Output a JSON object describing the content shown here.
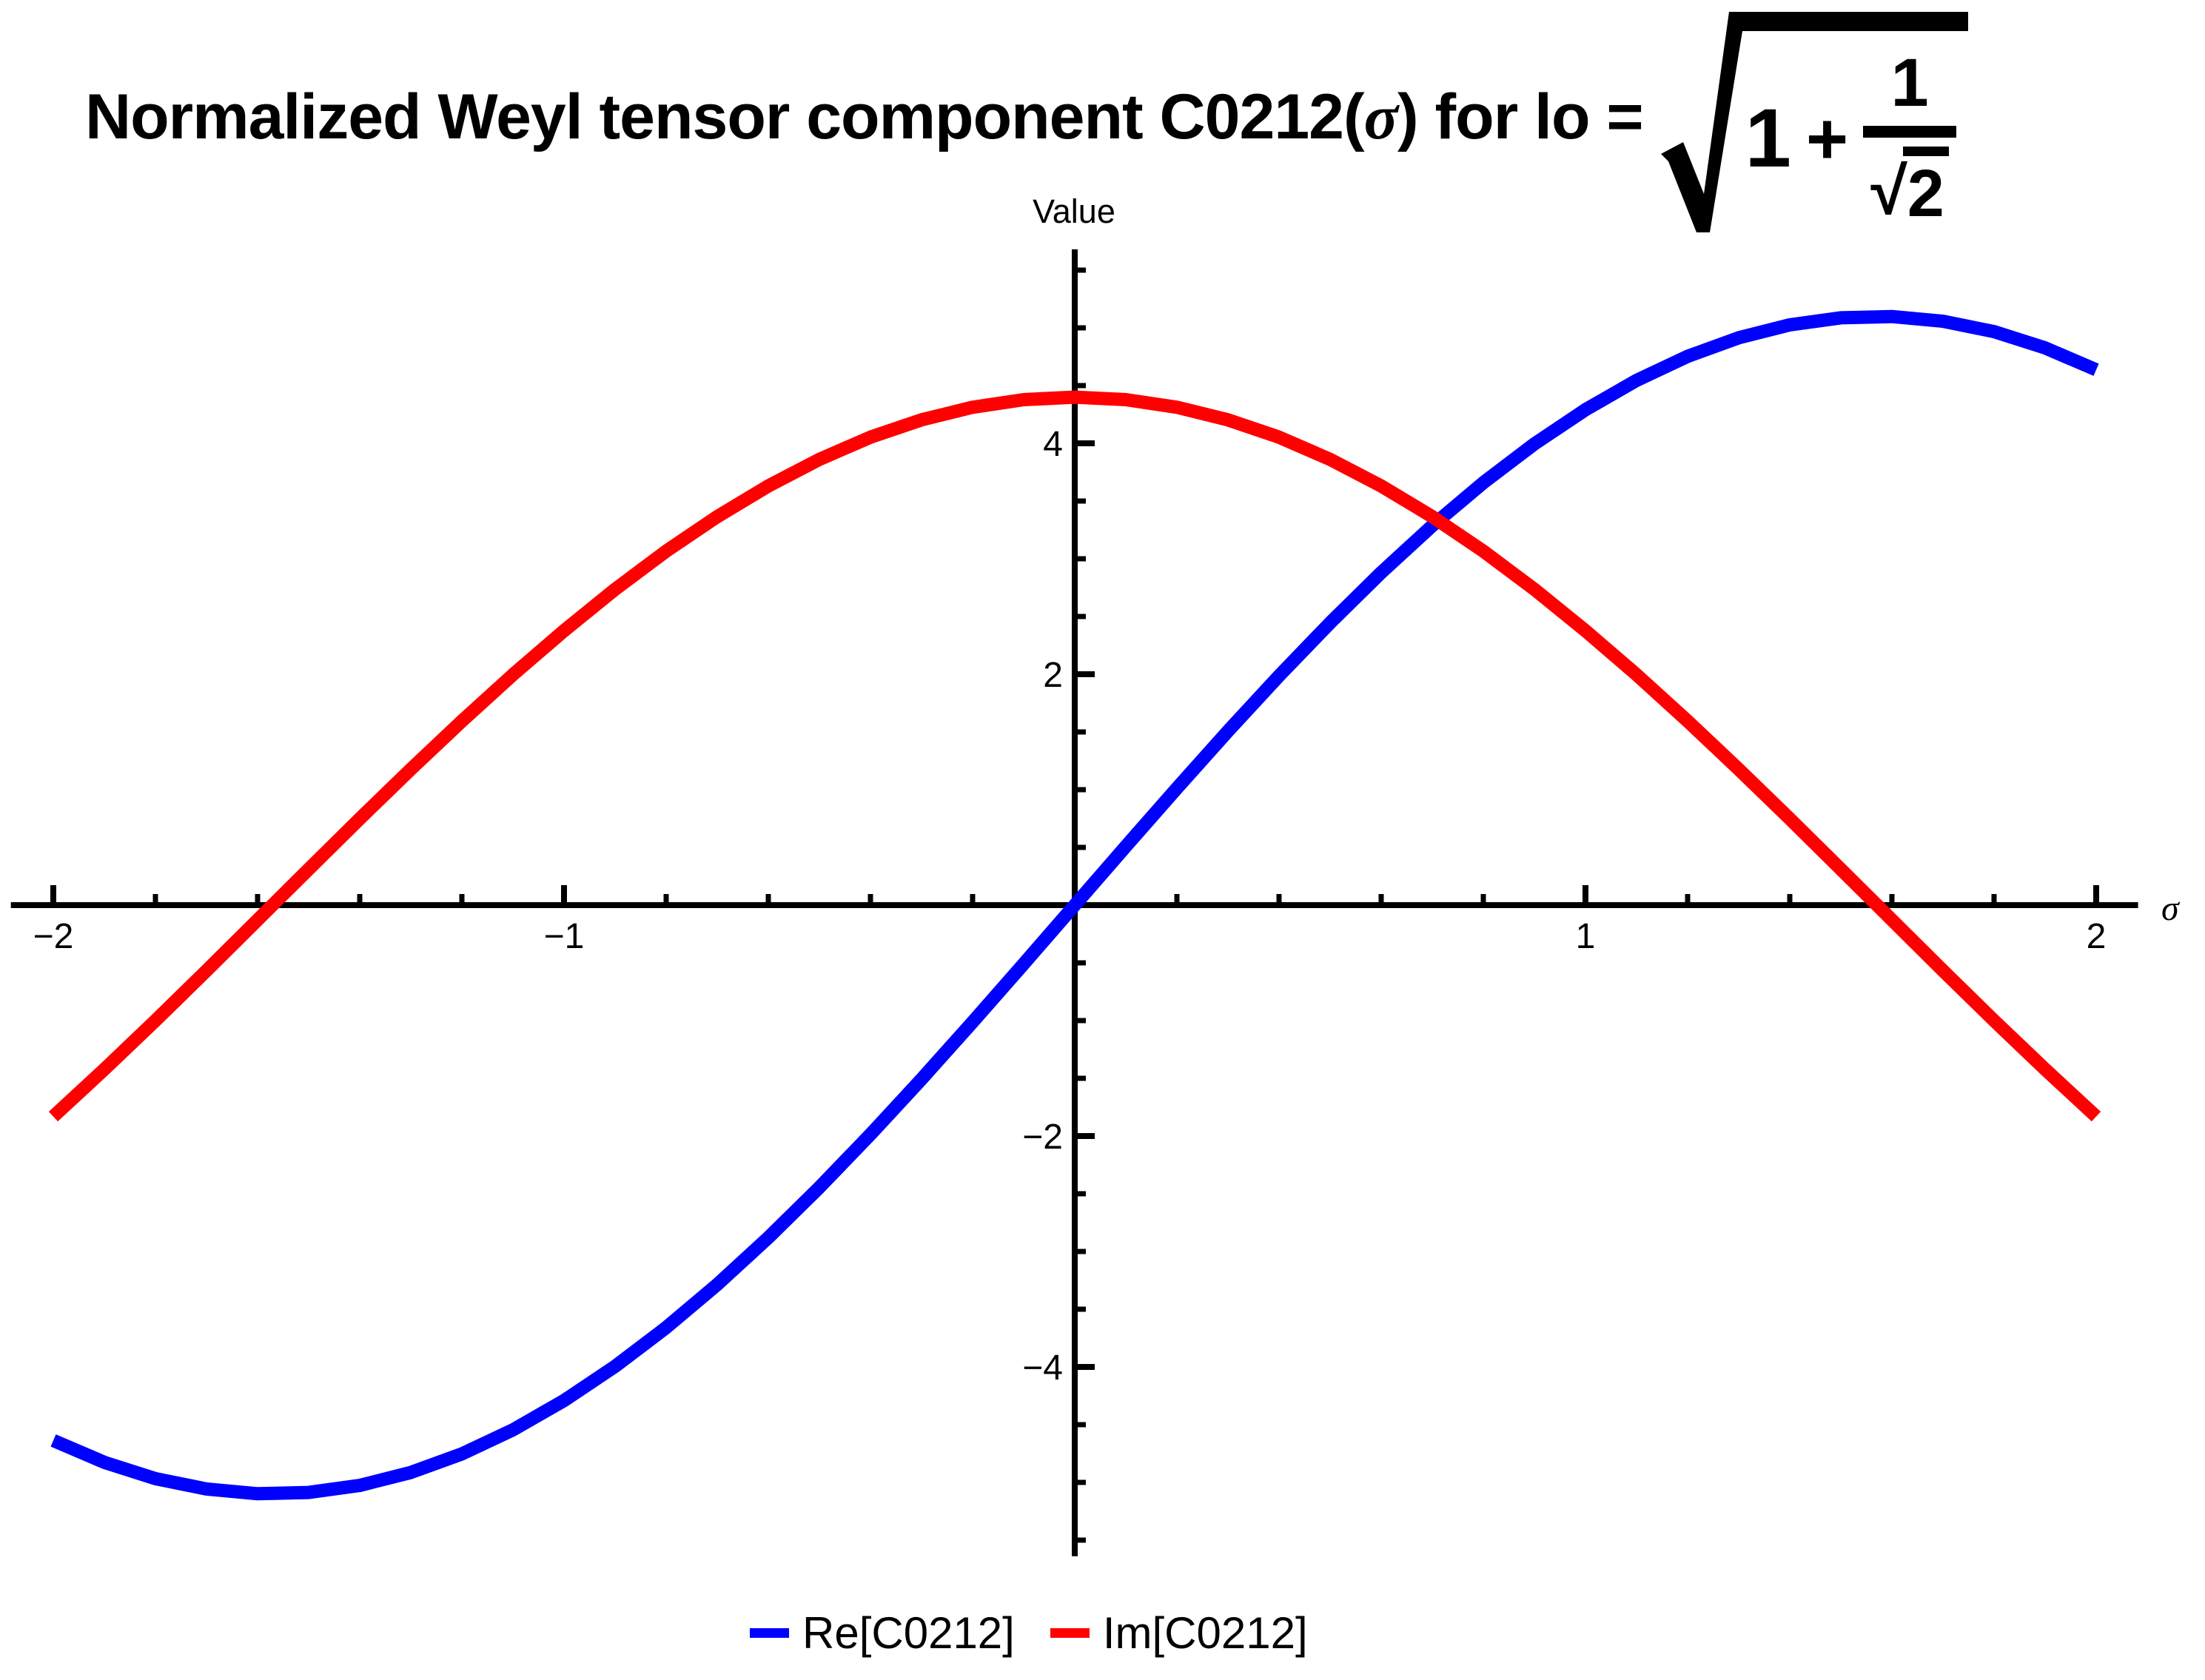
{
  "title": {
    "part1": "Normalized Weyl tensor component C0212(",
    "sigma": "σ",
    "part2": ") for lo = ",
    "sqrt": {
      "addend": "1",
      "plus": "+",
      "frac_num": "1",
      "frac_den_sign": "√",
      "frac_den": "2"
    }
  },
  "y_axis_label": "Value",
  "x_axis_label": "σ",
  "legend": [
    {
      "label": "Re[C0212]",
      "color": "#0000ff"
    },
    {
      "label": "Im[C0212]",
      "color": "#ff0000"
    }
  ],
  "chart_data": {
    "type": "line",
    "title": "Normalized Weyl tensor component C0212(σ) for lo = √(1 + 1/√2)",
    "xlabel": "σ",
    "ylabel": "Value",
    "grid": false,
    "legend_position": "below",
    "x_axis_extent": [
      -2.083,
      2.082
    ],
    "y_axis_extent": [
      -5.64,
      5.68
    ],
    "x_ticks": {
      "major": [
        {
          "v": -2,
          "label": "−2"
        },
        {
          "v": -1,
          "label": "−1"
        },
        {
          "v": 1,
          "label": "1"
        },
        {
          "v": 2,
          "label": "2"
        }
      ],
      "minor": [
        -1.8,
        -1.6,
        -1.4,
        -1.2,
        -0.8,
        -0.6,
        -0.4,
        -0.2,
        0.2,
        0.4,
        0.6,
        0.8,
        1.2,
        1.4,
        1.6,
        1.8
      ]
    },
    "y_ticks": {
      "major": [
        {
          "v": -4,
          "label": "−4"
        },
        {
          "v": -2,
          "label": "−2"
        },
        {
          "v": 2,
          "label": "2"
        },
        {
          "v": 4,
          "label": "4"
        }
      ],
      "minor": [
        -5.5,
        -5,
        -4.5,
        -3.5,
        -3,
        -2.5,
        -1.5,
        -1,
        -0.5,
        0.5,
        1,
        1.5,
        2.5,
        3,
        3.5,
        4.5,
        5,
        5.5
      ]
    },
    "series": [
      {
        "name": "Re[C0212]",
        "color": "#0000ff",
        "amplitude": 5.1,
        "x": [
          -2,
          -1.9,
          -1.8,
          -1.7,
          -1.6,
          -1.5,
          -1.4,
          -1.3,
          -1.2,
          -1.1,
          -1,
          -0.9,
          -0.8,
          -0.7,
          -0.6,
          -0.5,
          -0.4,
          -0.3,
          -0.2,
          -0.1,
          0,
          0.1,
          0.2,
          0.3,
          0.4,
          0.5,
          0.6,
          0.7,
          0.8,
          0.9,
          1,
          1.1,
          1.2,
          1.3,
          1.4,
          1.5,
          1.6,
          1.7,
          1.8,
          1.9,
          2
        ],
        "y": [
          -4.637,
          -4.826,
          -4.967,
          -5.057,
          -5.098,
          -5.087,
          -5.026,
          -4.914,
          -4.753,
          -4.545,
          -4.291,
          -3.995,
          -3.659,
          -3.286,
          -2.88,
          -2.445,
          -1.986,
          -1.507,
          -1.013,
          -0.509,
          0,
          0.509,
          1.013,
          1.507,
          1.986,
          2.445,
          2.88,
          3.286,
          3.659,
          3.995,
          4.291,
          4.545,
          4.753,
          4.914,
          5.026,
          5.087,
          5.098,
          5.057,
          4.967,
          4.826,
          4.637
        ]
      },
      {
        "name": "Im[C0212]",
        "color": "#ff0000",
        "amplitude": 4.4,
        "x": [
          -2,
          -1.9,
          -1.8,
          -1.7,
          -1.6,
          -1.5,
          -1.4,
          -1.3,
          -1.2,
          -1.1,
          -1,
          -0.9,
          -0.8,
          -0.7,
          -0.6,
          -0.5,
          -0.4,
          -0.3,
          -0.2,
          -0.1,
          0,
          0.1,
          0.2,
          0.3,
          0.4,
          0.5,
          0.6,
          0.7,
          0.8,
          0.9,
          1,
          1.1,
          1.2,
          1.3,
          1.4,
          1.5,
          1.6,
          1.7,
          1.8,
          1.9,
          2
        ],
        "y": [
          -1.831,
          -1.422,
          -1,
          -0.567,
          -0.128,
          0.311,
          0.748,
          1.177,
          1.594,
          1.996,
          2.377,
          2.735,
          3.066,
          3.365,
          3.631,
          3.861,
          4.053,
          4.203,
          4.312,
          4.378,
          4.4,
          4.378,
          4.312,
          4.203,
          4.053,
          3.861,
          3.631,
          3.365,
          3.066,
          2.735,
          2.377,
          1.996,
          1.594,
          1.177,
          0.748,
          0.311,
          -0.128,
          -0.567,
          -1,
          -1.422,
          -1.831
        ]
      }
    ]
  }
}
